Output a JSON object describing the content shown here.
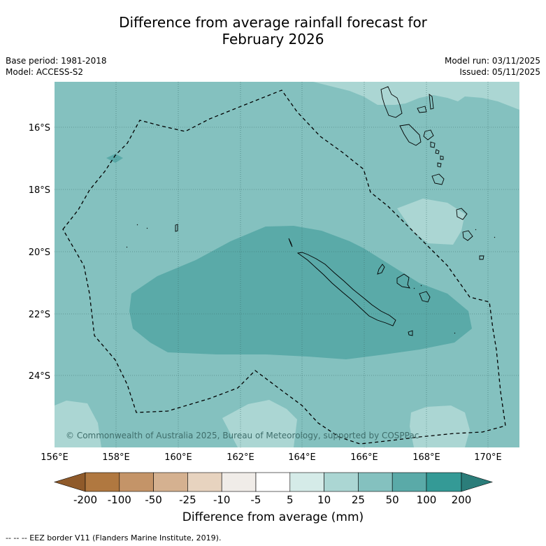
{
  "title_line1": "Difference from average rainfall forecast for",
  "title_line2": "February 2026",
  "meta_left": {
    "base_period": "Base period: 1981-2018",
    "model": "Model: ACCESS-S2"
  },
  "meta_right": {
    "model_run": "Model run: 03/11/2025",
    "issued": "Issued: 05/11/2025"
  },
  "lat_labels": [
    "16°S",
    "18°S",
    "20°S",
    "22°S",
    "24°S"
  ],
  "lon_labels": [
    "156°E",
    "158°E",
    "160°E",
    "162°E",
    "164°E",
    "166°E",
    "168°E",
    "170°E"
  ],
  "copyright": "© Commonwealth of Australia 2025, Bureau of Meteorology, supported by COSPPac",
  "colorbar": {
    "labels": [
      "-200",
      "-100",
      "-50",
      "-25",
      "-10",
      "-5",
      "5",
      "10",
      "25",
      "50",
      "100",
      "200"
    ],
    "colors": [
      "#8f5a2a",
      "#b07840",
      "#c49468",
      "#d5b190",
      "#e7d3bf",
      "#f0ece8",
      "#ffffff",
      "#d5ebe8",
      "#abd6d3",
      "#84c1bf",
      "#5aaaa8",
      "#349a96",
      "#2b7d7a"
    ],
    "title": "Difference from average (mm)"
  },
  "colors": {
    "ocean": "#84c1bf",
    "band_50_100": "#5aaaa8",
    "band_10_25": "#abd6d3",
    "land_outline": "#000000",
    "grid": "#3d6f6d"
  },
  "footnote": "--  --  -- EEZ border V11 (Flanders Marine Institute, 2019)."
}
